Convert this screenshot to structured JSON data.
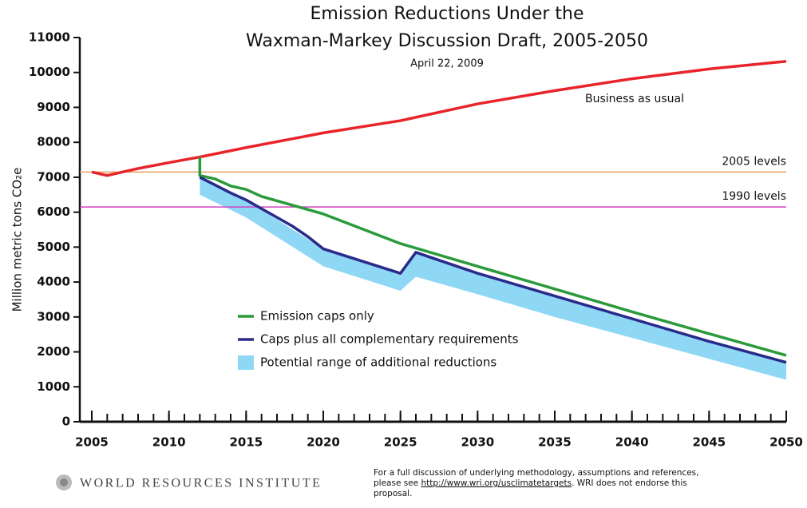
{
  "chart_data": {
    "type": "line",
    "title": [
      "Emission Reductions Under the",
      "Waxman-Markey Discussion Draft, 2005-2050"
    ],
    "subtitle": "April 22, 2009",
    "y_label": "Million metric tons CO₂e",
    "xlim": [
      2005,
      2050
    ],
    "xticks": [
      2005,
      2010,
      2015,
      2020,
      2025,
      2030,
      2035,
      2040,
      2045,
      2050
    ],
    "xminorticks": [
      2005,
      2006,
      2007,
      2008,
      2009,
      2010,
      2011,
      2012,
      2013,
      2014,
      2015,
      2016,
      2017,
      2018,
      2019,
      2020,
      2021,
      2022,
      2023,
      2024,
      2025,
      2026,
      2027,
      2028,
      2029,
      2030,
      2031,
      2032,
      2033,
      2034,
      2035,
      2036,
      2037,
      2038,
      2039,
      2040,
      2041,
      2042,
      2043,
      2044,
      2045,
      2046,
      2047,
      2048,
      2049,
      2050
    ],
    "ylim": [
      0,
      11000
    ],
    "yticks": [
      0,
      1000,
      2000,
      3000,
      4000,
      5000,
      6000,
      7000,
      8000,
      9000,
      10000,
      11000
    ],
    "reference_lines": [
      {
        "name": "2005 levels",
        "value": 7150,
        "color": "#e8a060"
      },
      {
        "name": "1990 levels",
        "value": 6150,
        "color": "#d040c0"
      }
    ],
    "series": [
      {
        "name": "Business as usual",
        "color": "#e8242a",
        "legend": false,
        "x": [
          2005,
          2006,
          2008,
          2010,
          2012,
          2015,
          2020,
          2025,
          2030,
          2035,
          2040,
          2045,
          2050
        ],
        "values": [
          7150,
          7050,
          7250,
          7420,
          7580,
          7850,
          8270,
          8620,
          9100,
          9480,
          9820,
          10100,
          10320
        ]
      },
      {
        "name": "Emission caps only",
        "color": "#2a9a3a",
        "legend": true,
        "x": [
          2012,
          2012,
          2013,
          2014,
          2015,
          2016,
          2020,
          2025,
          2030,
          2035,
          2040,
          2045,
          2050
        ],
        "values": [
          7580,
          7050,
          6950,
          6750,
          6650,
          6450,
          5950,
          5100,
          4450,
          3800,
          3150,
          2520,
          1900
        ]
      },
      {
        "name": "Caps plus all complementary requirements",
        "color": "#2a2a8a",
        "legend": true,
        "x": [
          2012,
          2014,
          2015,
          2016,
          2018,
          2019,
          2020,
          2025,
          2026,
          2030,
          2035,
          2040,
          2045,
          2050
        ],
        "values": [
          7000,
          6550,
          6350,
          6100,
          5600,
          5300,
          4950,
          4250,
          4850,
          4250,
          3600,
          2950,
          2300,
          1700
        ]
      }
    ],
    "range": {
      "name": "Potential range of additional reductions",
      "color": "#8fd8f5",
      "x": [
        2012,
        2015,
        2020,
        2025,
        2026,
        2030,
        2035,
        2040,
        2045,
        2050
      ],
      "high": [
        7000,
        6350,
        4950,
        4250,
        4850,
        4250,
        3600,
        2950,
        2300,
        1700
      ],
      "low": [
        6500,
        5850,
        4450,
        3750,
        4150,
        3650,
        3000,
        2400,
        1800,
        1200
      ]
    },
    "source": "WORLD RESOURCES INSTITUTE",
    "note": [
      "For a full discussion of underlying methodology, assumptions and references,",
      "please see ",
      "http://www.wri.org/usclimatetargets",
      ". WRI does not endorse this",
      "proposal."
    ]
  }
}
